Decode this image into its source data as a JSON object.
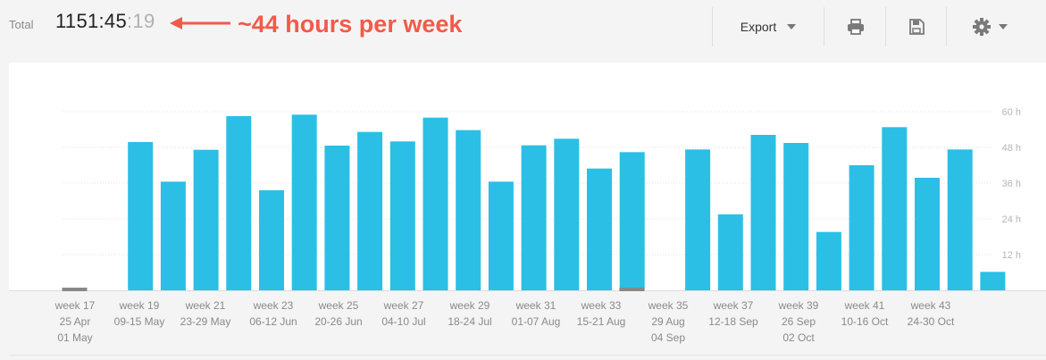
{
  "header": {
    "total_label": "Total",
    "total_main": "1151:45",
    "total_seconds": ":19",
    "annotation": "~44 hours per week",
    "annotation_color": "#f25a4a",
    "export_label": "Export",
    "icons": [
      "printer-icon",
      "floppy-disk-icon",
      "gear-icon"
    ]
  },
  "chart_data": {
    "type": "bar",
    "bar_color": "#2bbfe6",
    "empty_color": "#888888",
    "ylim": [
      0,
      60
    ],
    "yticks": [
      12,
      24,
      36,
      48,
      60
    ],
    "ytick_labels": [
      "12 h",
      "24 h",
      "36 h",
      "48 h",
      "60 h"
    ],
    "grid": true,
    "weeks": [
      17,
      18,
      19,
      20,
      21,
      22,
      23,
      24,
      25,
      26,
      27,
      28,
      29,
      30,
      31,
      32,
      33,
      34,
      35,
      36,
      37,
      38,
      39,
      40,
      41,
      42,
      43,
      44
    ],
    "values": [
      0,
      49.8,
      36.5,
      47.2,
      58.5,
      33.6,
      59,
      48.6,
      53.2,
      50,
      58,
      53.8,
      36.5,
      48.7,
      50.9,
      40.9,
      46.4,
      0,
      47.3,
      25.5,
      52.2,
      49.5,
      19.6,
      42,
      54.8,
      37.8,
      47.3,
      6.2
    ],
    "x_labels": [
      {
        "lines": [
          "week 17",
          "25 Apr",
          "01 May"
        ]
      },
      {
        "lines": [
          "week 19",
          "09-15 May"
        ]
      },
      {
        "lines": [
          "week 21",
          "23-29 May"
        ]
      },
      {
        "lines": [
          "week 23",
          "06-12 Jun"
        ]
      },
      {
        "lines": [
          "week 25",
          "20-26 Jun"
        ]
      },
      {
        "lines": [
          "week 27",
          "04-10 Jul"
        ]
      },
      {
        "lines": [
          "week 29",
          "18-24 Jul"
        ]
      },
      {
        "lines": [
          "week 31",
          "01-07 Aug"
        ]
      },
      {
        "lines": [
          "week 33",
          "15-21 Aug"
        ]
      },
      {
        "lines": [
          "week 35",
          "29 Aug",
          "04 Sep"
        ]
      },
      {
        "lines": [
          "week 37",
          "12-18 Sep"
        ]
      },
      {
        "lines": [
          "week 39",
          "26 Sep",
          "02 Oct"
        ]
      },
      {
        "lines": [
          "week 41",
          "10-16 Oct"
        ]
      },
      {
        "lines": [
          "week 43",
          "24-30 Oct"
        ]
      }
    ],
    "x_label_week_indices": [
      0,
      2,
      4,
      6,
      8,
      10,
      12,
      14,
      16,
      18,
      20,
      22,
      24,
      26
    ]
  }
}
